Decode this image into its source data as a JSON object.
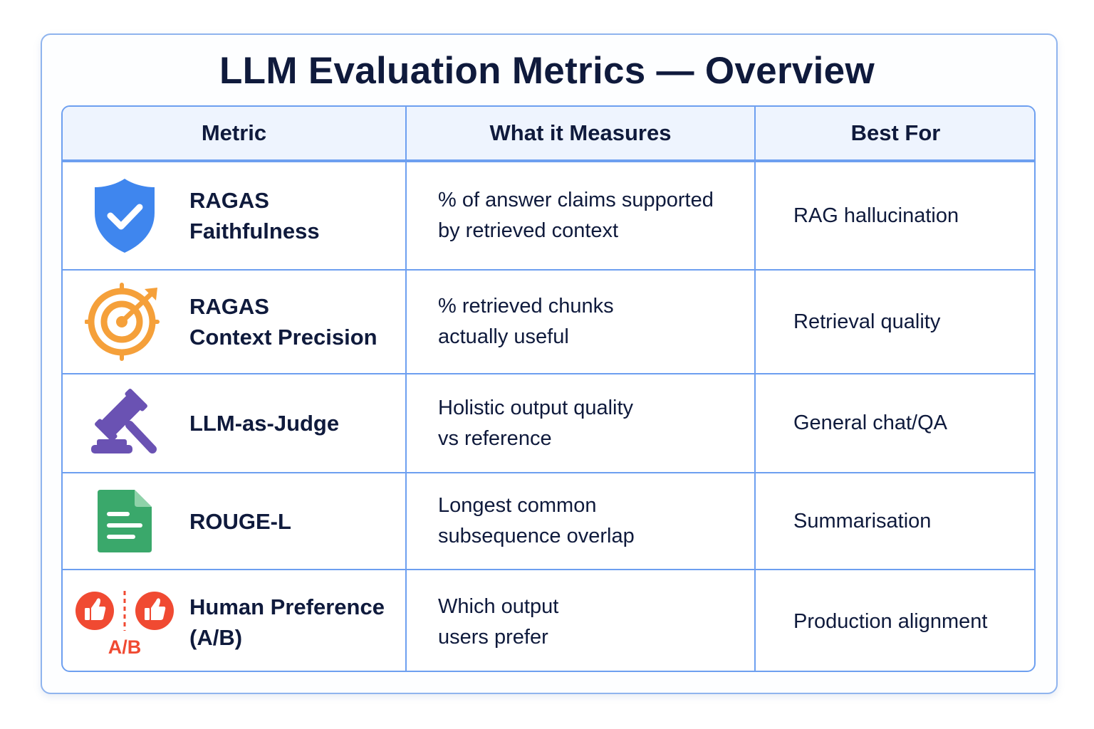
{
  "title": "LLM Evaluation Metrics — Overview",
  "columns": [
    "Metric",
    "What it Measures",
    "Best For"
  ],
  "rows": [
    {
      "icon": "shield-check-icon",
      "metric_lines": [
        "RAGAS",
        "Faithfulness"
      ],
      "measures_lines": [
        "% of answer claims supported",
        "by retrieved context"
      ],
      "best_for": "RAG hallucination"
    },
    {
      "icon": "target-icon",
      "metric_lines": [
        "RAGAS",
        "Context Precision"
      ],
      "measures_lines": [
        "% retrieved chunks",
        "actually useful"
      ],
      "best_for": "Retrieval quality"
    },
    {
      "icon": "gavel-icon",
      "metric_lines": [
        "LLM-as-Judge"
      ],
      "measures_lines": [
        "Holistic output quality",
        "vs reference"
      ],
      "best_for": "General chat/QA"
    },
    {
      "icon": "document-icon",
      "metric_lines": [
        "ROUGE-L"
      ],
      "measures_lines": [
        "Longest common",
        "subsequence overlap"
      ],
      "best_for": "Summarisation"
    },
    {
      "icon": "thumbs-up-ab-icon",
      "icon_label": "A/B",
      "metric_lines": [
        "Human Preference",
        "(A/B)"
      ],
      "measures_lines": [
        "Which output",
        "users prefer"
      ],
      "best_for": "Production alignment"
    }
  ],
  "colors": {
    "border": "#6d9ff0",
    "header_bg": "#eef4fe",
    "text": "#0f1a3c",
    "shield": "#3f86ee",
    "target": "#f5a03a",
    "gavel": "#6a52b3",
    "document": "#3aa86b",
    "thumbs": "#f04a32"
  }
}
